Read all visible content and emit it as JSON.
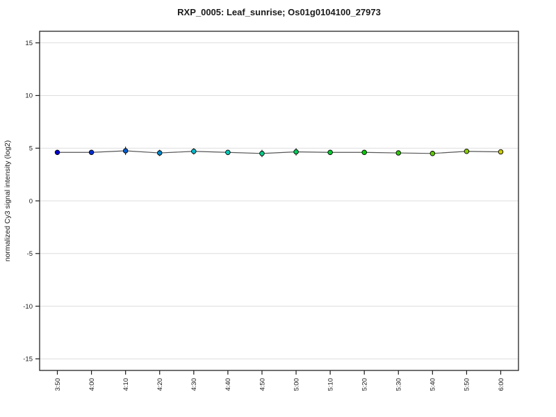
{
  "window": {
    "background": "#ffffff"
  },
  "chart_data": {
    "type": "line",
    "title": "RXP_0005: Leaf_sunrise; Os01g0104100_27973",
    "xlabel": "",
    "ylabel": "normalized Cy3 signal intensity (log2)",
    "categories": [
      "3:50",
      "4:00",
      "4:10",
      "4:20",
      "4:30",
      "4:40",
      "4:50",
      "5:00",
      "5:10",
      "5:20",
      "5:30",
      "5:40",
      "5:50",
      "6:00"
    ],
    "series": [
      {
        "name": "Os01g0104100_27973",
        "values": [
          4.6,
          4.6,
          4.75,
          4.55,
          4.7,
          4.6,
          4.5,
          4.65,
          4.6,
          4.6,
          4.55,
          4.5,
          4.7,
          4.65
        ],
        "errors": [
          0.15,
          0.15,
          0.4,
          0.3,
          0.3,
          0.25,
          0.35,
          0.35,
          0.25,
          0.2,
          0.2,
          0.25,
          0.2,
          0.2
        ]
      }
    ],
    "point_colors": [
      "#0000CC",
      "#002ECC",
      "#005CCC",
      "#008ACC",
      "#00B8CC",
      "#00CCB8",
      "#00CC8A",
      "#00CC5C",
      "#00CC2E",
      "#00CC00",
      "#2ECC00",
      "#5CCC00",
      "#8ACC00",
      "#CCCC00"
    ],
    "styles": {
      "line_color": "#555555",
      "point_stroke": "#000000",
      "grid_color": "#dddddd",
      "axis_color": "#1a1a1a",
      "box_color": "#222222",
      "error_color": "#000000"
    },
    "ylim": [
      -16.1,
      16.1
    ],
    "yticks": [
      15,
      10,
      5,
      0,
      -5,
      -10,
      -15
    ],
    "grid": "horizontal",
    "legend_position": "none",
    "point_radius": 3.3
  }
}
